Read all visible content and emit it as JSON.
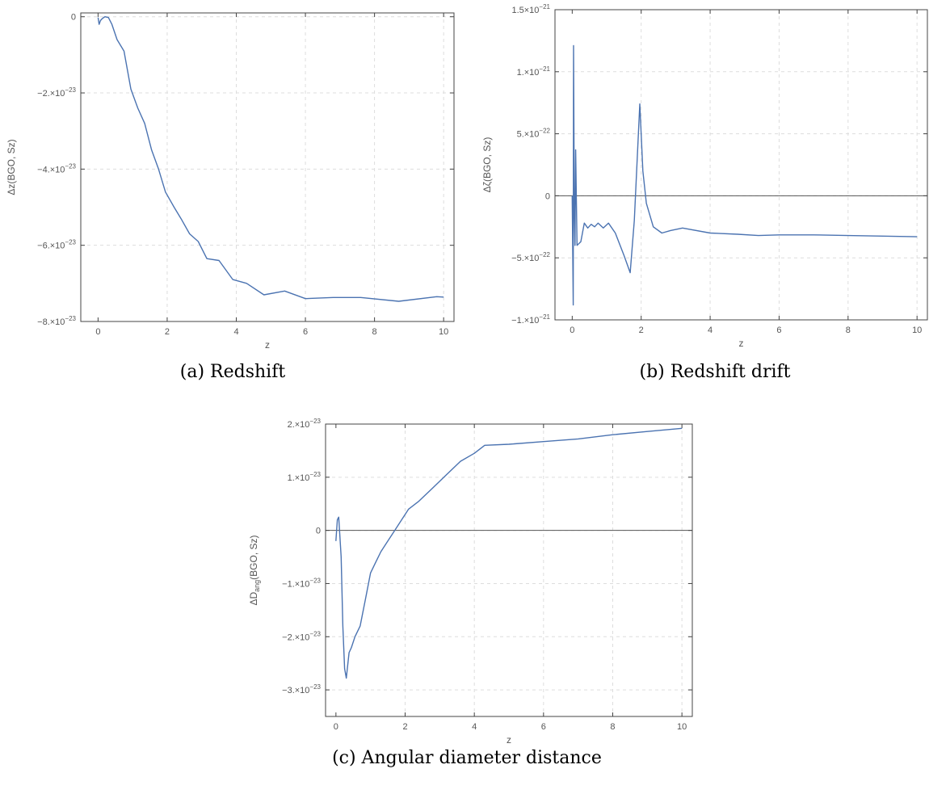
{
  "chart_data": [
    {
      "type": "line",
      "caption": "(a) Redshift",
      "xlabel": "z",
      "ylabel": "Δz(BGO, Sz)",
      "xlim": [
        -0.5,
        10.3
      ],
      "ylim": [
        -8e-23,
        1e-24
      ],
      "xticks": [
        0,
        2,
        4,
        6,
        8,
        10
      ],
      "yticks": [
        {
          "value": 0,
          "mant": "0",
          "exp": ""
        },
        {
          "value": -2e-23,
          "mant": "−2.×10",
          "exp": "−23"
        },
        {
          "value": -4e-23,
          "mant": "−4.×10",
          "exp": "−23"
        },
        {
          "value": -6e-23,
          "mant": "−6.×10",
          "exp": "−23"
        },
        {
          "value": -8e-23,
          "mant": "−8.×10",
          "exp": "−23"
        }
      ],
      "zero_line": false,
      "grid": true,
      "x": [
        0,
        0.03,
        0.07,
        0.12,
        0.2,
        0.3,
        0.4,
        0.55,
        0.75,
        0.95,
        1.15,
        1.35,
        1.55,
        1.75,
        1.95,
        2.2,
        2.4,
        2.65,
        2.9,
        3.15,
        3.5,
        3.9,
        4.3,
        4.8,
        5.4,
        6.0,
        6.8,
        7.6,
        8.7,
        9.8,
        10.0
      ],
      "y": [
        -2e-25,
        -2e-24,
        -1e-24,
        -5e-25,
        0.0,
        -2e-25,
        -2e-24,
        -6e-24,
        -9e-24,
        -1.9e-23,
        -2.4e-23,
        -2.8e-23,
        -3.5e-23,
        -4e-23,
        -4.6e-23,
        -5e-23,
        -5.3e-23,
        -5.7e-23,
        -5.9e-23,
        -6.35e-23,
        -6.4e-23,
        -6.9e-23,
        -7e-23,
        -7.3e-23,
        -7.2e-23,
        -7.4e-23,
        -7.37e-23,
        -7.37e-23,
        -7.47e-23,
        -7.35e-23,
        -7.36e-23
      ]
    },
    {
      "type": "line",
      "caption": "(b) Redshift drift",
      "xlabel": "z",
      "ylabel": "Δζ(BGO, Sz)",
      "xlim": [
        -0.5,
        10.3
      ],
      "ylim": [
        -1e-21,
        1.5e-21
      ],
      "xticks": [
        0,
        2,
        4,
        6,
        8,
        10
      ],
      "yticks": [
        {
          "value": 1.5e-21,
          "mant": "1.5×10",
          "exp": "−21"
        },
        {
          "value": 1e-21,
          "mant": "1.×10",
          "exp": "−21"
        },
        {
          "value": 5e-22,
          "mant": "5.×10",
          "exp": "−22"
        },
        {
          "value": 0,
          "mant": "0",
          "exp": ""
        },
        {
          "value": -5e-22,
          "mant": "−5.×10",
          "exp": "−22"
        },
        {
          "value": -1e-21,
          "mant": "−1.×10",
          "exp": "−21"
        }
      ],
      "zero_line": true,
      "grid": true,
      "x": [
        0.0,
        0.03,
        0.04,
        0.06,
        0.08,
        0.1,
        0.14,
        0.25,
        0.35,
        0.45,
        0.55,
        0.65,
        0.75,
        0.9,
        1.05,
        1.25,
        1.5,
        1.68,
        1.8,
        1.96,
        2.05,
        2.15,
        2.35,
        2.6,
        2.85,
        3.2,
        4.0,
        4.8,
        5.4,
        6.0,
        7.0,
        8.0,
        9.0,
        10.0
      ],
      "y": [
        0.0,
        -8.8e-22,
        1.21e-21,
        -1e-22,
        -4e-22,
        3.7e-22,
        -4e-22,
        -3.7e-22,
        -2.2e-22,
        -2.6e-22,
        -2.3e-22,
        -2.5e-22,
        -2.2e-22,
        -2.6e-22,
        -2.2e-22,
        -3e-22,
        -4.8e-22,
        -6.2e-22,
        -2e-22,
        7.4e-22,
        2e-22,
        -6e-23,
        -2.5e-22,
        -3e-22,
        -2.8e-22,
        -2.6e-22,
        -3e-22,
        -3.1e-22,
        -3.2e-22,
        -3.15e-22,
        -3.15e-22,
        -3.2e-22,
        -3.25e-22,
        -3.3e-22
      ]
    },
    {
      "type": "line",
      "caption": "(c) Angular diameter distance",
      "xlabel": "z",
      "ylabel": "ΔD",
      "ylabel_sub": "ang",
      "ylabel_tail": "(BGO, Sz)",
      "xlim": [
        -0.3,
        10.3
      ],
      "ylim": [
        -3.5e-23,
        2e-23
      ],
      "xticks": [
        0,
        2,
        4,
        6,
        8,
        10
      ],
      "yticks": [
        {
          "value": 2e-23,
          "mant": "2.×10",
          "exp": "−23"
        },
        {
          "value": 1e-23,
          "mant": "1.×10",
          "exp": "−23"
        },
        {
          "value": 0,
          "mant": "0",
          "exp": ""
        },
        {
          "value": -1e-23,
          "mant": "−1.×10",
          "exp": "−23"
        },
        {
          "value": -2e-23,
          "mant": "−2.×10",
          "exp": "−23"
        },
        {
          "value": -3e-23,
          "mant": "−3.×10",
          "exp": "−23"
        }
      ],
      "zero_line": true,
      "grid": true,
      "x": [
        0.0,
        0.04,
        0.08,
        0.15,
        0.2,
        0.25,
        0.3,
        0.38,
        0.45,
        0.55,
        0.7,
        0.85,
        1.0,
        1.15,
        1.3,
        1.5,
        1.7,
        1.9,
        2.1,
        2.4,
        2.8,
        3.2,
        3.6,
        4.0,
        4.3,
        5.0,
        6.0,
        7.0,
        8.0,
        9.0,
        10.0
      ],
      "y": [
        -2e-24,
        2e-24,
        2.5e-24,
        -5e-24,
        -1.8e-23,
        -2.6e-23,
        -2.78e-23,
        -2.3e-23,
        -2.2e-23,
        -2e-23,
        -1.8e-23,
        -1.3e-23,
        -8e-24,
        -6e-24,
        -4e-24,
        -2e-24,
        0.0,
        2e-24,
        4e-24,
        5.5e-24,
        8e-24,
        1.05e-23,
        1.3e-23,
        1.45e-23,
        1.6e-23,
        1.62e-23,
        1.67e-23,
        1.72e-23,
        1.8e-23,
        1.86e-23,
        1.92e-23
      ]
    }
  ],
  "colors": {
    "series": "#4b73b1",
    "frame": "#444444",
    "grid": "#dddddd",
    "text": "#555555"
  }
}
